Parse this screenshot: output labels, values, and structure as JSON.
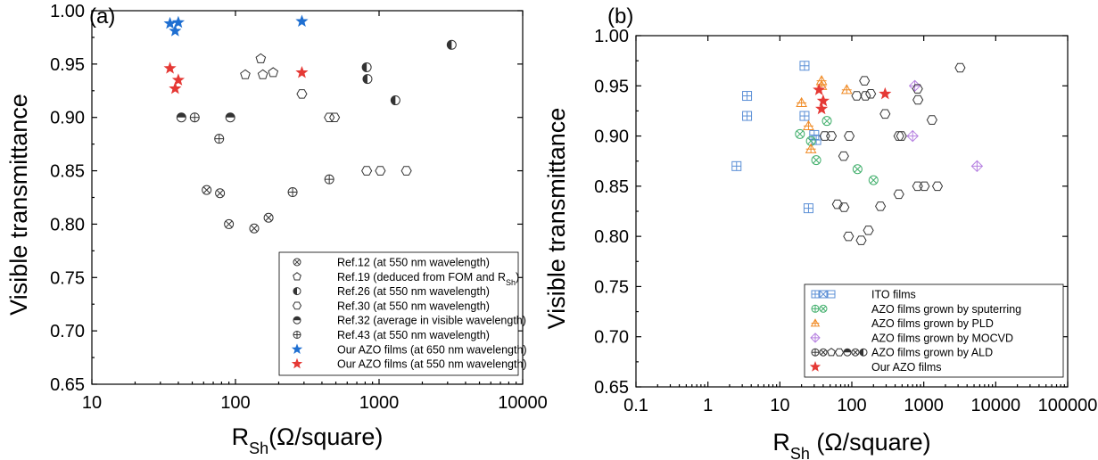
{
  "chart_data": [
    {
      "panel_label": "(a)",
      "type": "scatter",
      "xscale": "log",
      "xlim": [
        10,
        10000
      ],
      "ylim": [
        0.65,
        1.0
      ],
      "xticks": [
        "10",
        "100",
        "1000",
        "10000"
      ],
      "yticks": [
        "0.65",
        "0.70",
        "0.75",
        "0.80",
        "0.85",
        "0.90",
        "0.95",
        "1.00"
      ],
      "xlabel": {
        "main": "R",
        "sub": "Sh",
        "rest": "(Ω/square)"
      },
      "ylabel": "Visible transmittance",
      "legend_position": "lower-right",
      "series": [
        {
          "name": "Ref.12 (at 550 nm wavelength)",
          "marker": "circle-x",
          "color": "#333333",
          "points": [
            [
              63,
              0.832
            ],
            [
              78,
              0.829
            ],
            [
              90,
              0.8
            ],
            [
              135,
              0.796
            ],
            [
              170,
              0.806
            ]
          ]
        },
        {
          "name_main": "Ref.19 (deduced from FOM and R",
          "name_sub": "Sh",
          "name_end": ")",
          "marker": "pentagon",
          "color": "#333333",
          "points": [
            [
              150,
              0.955
            ],
            [
              117,
              0.94
            ],
            [
              155,
              0.94
            ],
            [
              183,
              0.942
            ]
          ]
        },
        {
          "name": "Ref.26 (at 550 nm wavelength)",
          "marker": "circle-left",
          "color": "#333333",
          "points": [
            [
              3200,
              0.968
            ],
            [
              820,
              0.947
            ],
            [
              830,
              0.936
            ],
            [
              1300,
              0.916
            ]
          ]
        },
        {
          "name": "Ref.30 (at 550 nm wavelength)",
          "marker": "hexagon",
          "color": "#333333",
          "points": [
            [
              290,
              0.922
            ],
            [
              450,
              0.9
            ],
            [
              490,
              0.9
            ],
            [
              820,
              0.85
            ],
            [
              1020,
              0.85
            ],
            [
              1550,
              0.85
            ]
          ]
        },
        {
          "name": "Ref.32 (average in visible wavelength)",
          "marker": "circle-top",
          "color": "#333333",
          "points": [
            [
              42,
              0.9
            ],
            [
              92,
              0.9
            ]
          ]
        },
        {
          "name": "Ref.43 (at 550 nm wavelength)",
          "marker": "circle-plus",
          "color": "#333333",
          "points": [
            [
              52,
              0.9
            ],
            [
              77,
              0.88
            ],
            [
              250,
              0.83
            ],
            [
              450,
              0.842
            ]
          ]
        },
        {
          "name": "Our AZO films (at 650 nm wavelength)",
          "marker": "star",
          "color": "#1f6fd1",
          "points": [
            [
              35,
              0.988
            ],
            [
              38,
              0.981
            ],
            [
              40,
              0.989
            ],
            [
              290,
              0.99
            ]
          ]
        },
        {
          "name": "Our AZO films (at 550 nm wavelength)",
          "marker": "star",
          "color": "#e53935",
          "points": [
            [
              35,
              0.946
            ],
            [
              38,
              0.927
            ],
            [
              40,
              0.935
            ],
            [
              290,
              0.942
            ]
          ]
        }
      ]
    },
    {
      "panel_label": "(b)",
      "type": "scatter",
      "xscale": "log",
      "xlim": [
        0.1,
        100000
      ],
      "ylim": [
        0.65,
        1.0
      ],
      "xticks": [
        "0.1",
        "1",
        "10",
        "100",
        "1000",
        "10000",
        "100000"
      ],
      "yticks": [
        "0.65",
        "0.70",
        "0.75",
        "0.80",
        "0.85",
        "0.90",
        "0.95",
        "1.00"
      ],
      "xlabel": {
        "main": "R",
        "sub": "Sh",
        "rest": " (Ω/square)"
      },
      "ylabel": "Visible transmittance",
      "legend_position": "lower-right",
      "series": [
        {
          "name": "ITO films",
          "marker": "square-plus",
          "color": "#5b8fd6",
          "legend_markers": [
            "square-plus",
            "square-x",
            "square-line"
          ],
          "points": [
            [
              3.5,
              0.94
            ],
            [
              3.5,
              0.92
            ],
            [
              2.5,
              0.87
            ],
            [
              22,
              0.97
            ],
            [
              22,
              0.92
            ],
            [
              25,
              0.828
            ],
            [
              30,
              0.901
            ],
            [
              32,
              0.896
            ]
          ]
        },
        {
          "name": "AZO films grown by sputerring",
          "marker": "circle-x",
          "color": "#3fae6a",
          "legend_markers": [
            "circle-plus",
            "circle-x"
          ],
          "points": [
            [
              19,
              0.902
            ],
            [
              27,
              0.895
            ],
            [
              32,
              0.876
            ],
            [
              45,
              0.915
            ],
            [
              120,
              0.867
            ],
            [
              200,
              0.856
            ]
          ]
        },
        {
          "name": "AZO films grown by PLD",
          "marker": "triangle-plus",
          "color": "#f08a24",
          "legend_markers": [
            "triangle-plus"
          ],
          "points": [
            [
              20,
              0.933
            ],
            [
              25,
              0.91
            ],
            [
              27,
              0.887
            ],
            [
              38,
              0.955
            ],
            [
              38,
              0.95
            ],
            [
              85,
              0.946
            ]
          ]
        },
        {
          "name": "AZO films grown by MOCVD",
          "marker": "diamond-plus",
          "color": "#b57fe0",
          "legend_markers": [
            "diamond-plus"
          ],
          "points": [
            [
              750,
              0.95
            ],
            [
              700,
              0.9
            ],
            [
              5500,
              0.87
            ]
          ]
        },
        {
          "name": "AZO films grown by ALD",
          "marker": "hexagon",
          "color": "#333333",
          "legend_markers": [
            "circle-plus",
            "circle-x",
            "pentagon",
            "hexagon",
            "circle-top",
            "circle-x",
            "circle-left"
          ],
          "points": [
            [
              150,
              0.955
            ],
            [
              117,
              0.94
            ],
            [
              155,
              0.94
            ],
            [
              183,
              0.942
            ],
            [
              3200,
              0.968
            ],
            [
              820,
              0.947
            ],
            [
              830,
              0.936
            ],
            [
              1300,
              0.916
            ],
            [
              290,
              0.922
            ],
            [
              450,
              0.9
            ],
            [
              490,
              0.9
            ],
            [
              820,
              0.85
            ],
            [
              1020,
              0.85
            ],
            [
              1550,
              0.85
            ],
            [
              42,
              0.9
            ],
            [
              92,
              0.9
            ],
            [
              52,
              0.9
            ],
            [
              77,
              0.88
            ],
            [
              250,
              0.83
            ],
            [
              450,
              0.842
            ],
            [
              63,
              0.832
            ],
            [
              78,
              0.829
            ],
            [
              90,
              0.8
            ],
            [
              135,
              0.796
            ],
            [
              170,
              0.806
            ]
          ]
        },
        {
          "name": "Our AZO films",
          "marker": "star",
          "color": "#e53935",
          "legend_markers": [
            "star"
          ],
          "points": [
            [
              35,
              0.946
            ],
            [
              38,
              0.927
            ],
            [
              40,
              0.935
            ],
            [
              290,
              0.942
            ]
          ]
        }
      ]
    }
  ]
}
